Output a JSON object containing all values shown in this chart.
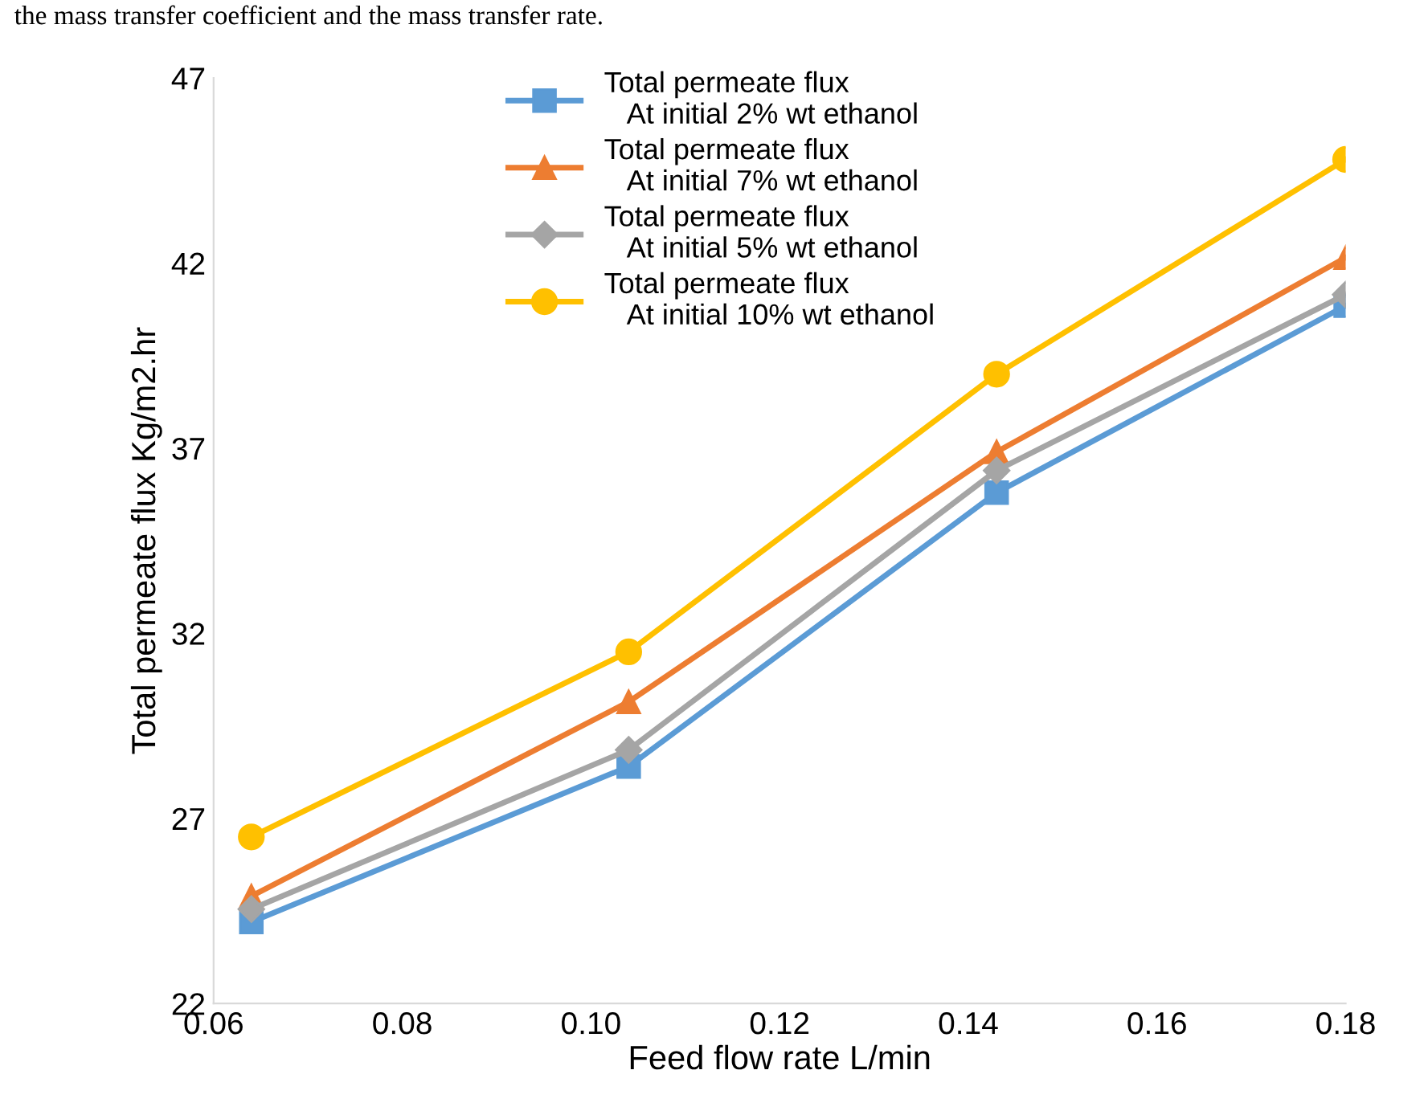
{
  "chart_data": {
    "type": "line",
    "xlabel": "Feed flow rate L/min",
    "ylabel": "Total permeate flux Kg/m2.hr",
    "annotations": [
      "the mass transfer coefficient and the mass transfer rate."
    ],
    "x": [
      0.064,
      0.104,
      0.143,
      0.18
    ],
    "xlim": [
      0.06,
      0.18
    ],
    "xticks": [
      {
        "value": 0.06,
        "label": "0.06"
      },
      {
        "value": 0.08,
        "label": "0.08"
      },
      {
        "value": 0.1,
        "label": "0.10"
      },
      {
        "value": 0.12,
        "label": "0.12"
      },
      {
        "value": 0.14,
        "label": "0.14"
      },
      {
        "value": 0.16,
        "label": "0.16"
      },
      {
        "value": 0.18,
        "label": "0.18"
      }
    ],
    "ylim": [
      22,
      47
    ],
    "yticks": [
      22,
      27,
      32,
      37,
      42,
      47
    ],
    "grid": false,
    "legend": "top",
    "series": [
      {
        "name": "Total permeate flux\n   At initial 2% wt ethanol",
        "color": "#5b9bd5",
        "marker": "square",
        "values": [
          24.2,
          28.4,
          35.8,
          40.85
        ]
      },
      {
        "name": "Total permeate flux\n   At initial 7% wt ethanol",
        "color": "#ed7d31",
        "marker": "triangle",
        "values": [
          24.9,
          30.15,
          36.9,
          42.15
        ]
      },
      {
        "name": "Total permeate flux\n   At initial 5% wt ethanol",
        "color": "#a5a5a5",
        "marker": "diamond",
        "values": [
          24.55,
          28.85,
          36.4,
          41.15
        ]
      },
      {
        "name": "Total permeate flux\n   At initial 10% wt ethanol",
        "color": "#ffc000",
        "marker": "circle",
        "values": [
          26.5,
          31.5,
          39.0,
          44.8
        ]
      }
    ]
  }
}
